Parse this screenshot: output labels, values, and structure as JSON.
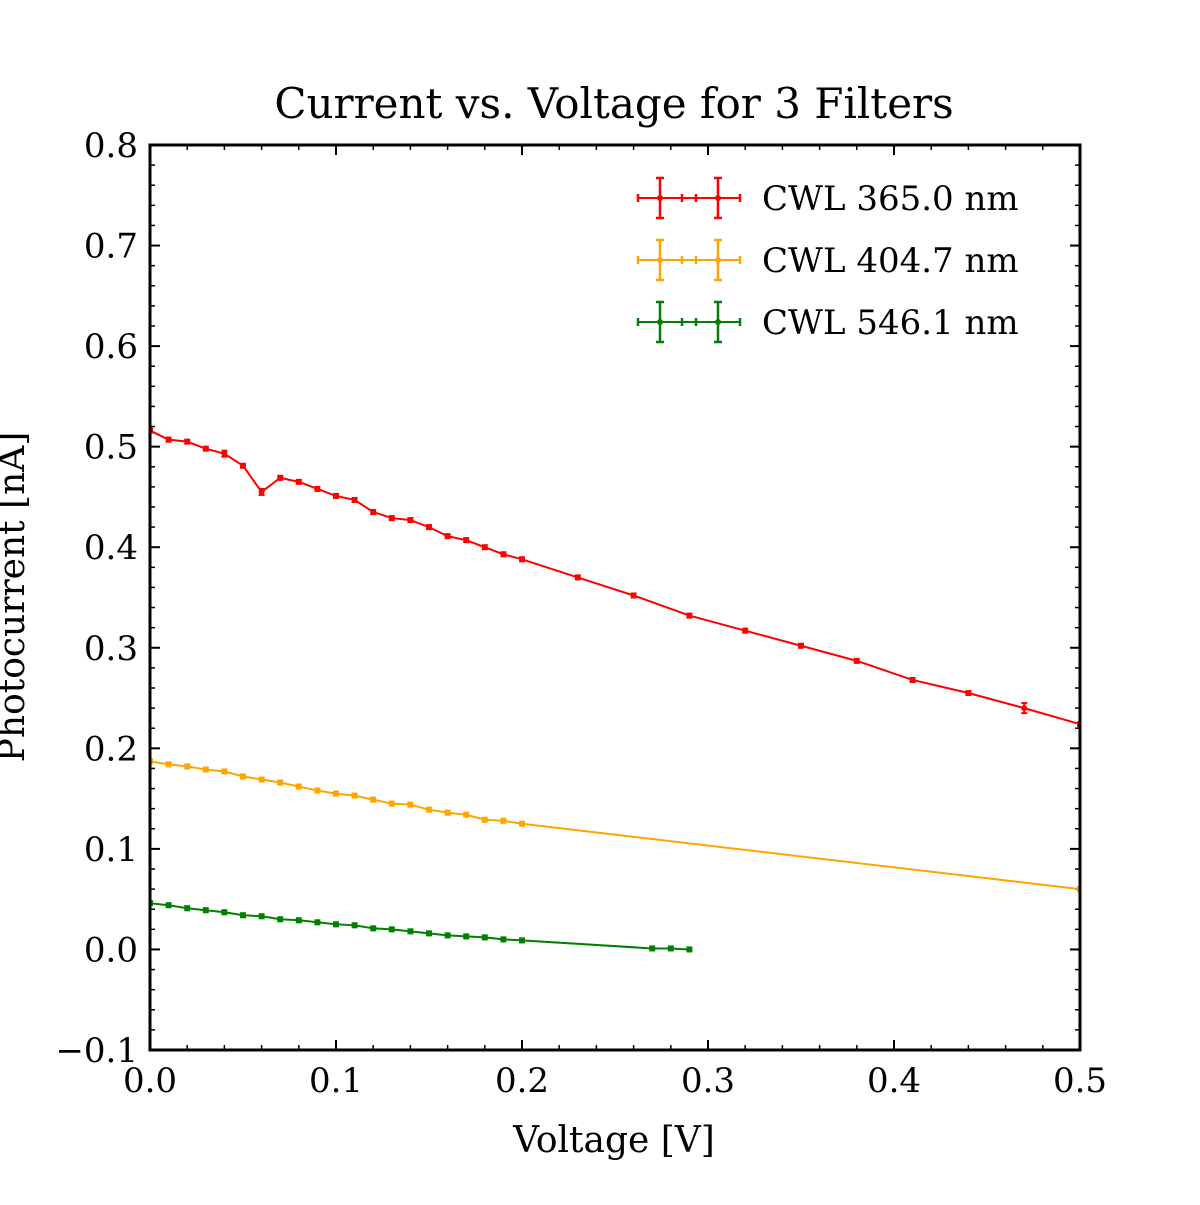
{
  "chart_data": {
    "type": "line",
    "title": "Current vs. Voltage for 3 Filters",
    "xlabel": "Voltage [V]",
    "ylabel": "Photocurrent [nA]",
    "xlim": [
      0.0,
      0.5
    ],
    "ylim": [
      -0.1,
      0.8
    ],
    "xticks": [
      0.0,
      0.1,
      0.2,
      0.3,
      0.4,
      0.5
    ],
    "xtick_labels": [
      "0.0",
      "0.1",
      "0.2",
      "0.3",
      "0.4",
      "0.5"
    ],
    "yticks": [
      -0.1,
      0.0,
      0.1,
      0.2,
      0.3,
      0.4,
      0.5,
      0.6,
      0.7,
      0.8
    ],
    "ytick_labels": [
      "−0.1",
      "0.0",
      "0.1",
      "0.2",
      "0.3",
      "0.4",
      "0.5",
      "0.6",
      "0.7",
      "0.8"
    ],
    "grid": false,
    "legend_position": "top-right",
    "series": [
      {
        "name": "CWL 365.0 nm",
        "color": "#ff0000",
        "x": [
          0.0,
          0.01,
          0.02,
          0.03,
          0.04,
          0.05,
          0.06,
          0.07,
          0.08,
          0.09,
          0.1,
          0.11,
          0.12,
          0.13,
          0.14,
          0.15,
          0.16,
          0.17,
          0.18,
          0.19,
          0.2,
          0.23,
          0.26,
          0.29,
          0.32,
          0.35,
          0.38,
          0.41,
          0.44,
          0.47,
          0.5
        ],
        "y": [
          0.516,
          0.507,
          0.505,
          0.498,
          0.493,
          0.481,
          0.455,
          0.469,
          0.465,
          0.458,
          0.451,
          0.447,
          0.435,
          0.429,
          0.427,
          0.42,
          0.411,
          0.407,
          0.4,
          0.393,
          0.388,
          0.37,
          0.352,
          0.332,
          0.317,
          0.302,
          0.287,
          0.268,
          0.255,
          0.24,
          0.224
        ],
        "yerr": [
          0.002,
          0.002,
          0.002,
          0.002,
          0.003,
          0.002,
          0.003,
          0.002,
          0.002,
          0.002,
          0.002,
          0.002,
          0.002,
          0.002,
          0.002,
          0.002,
          0.002,
          0.002,
          0.002,
          0.002,
          0.002,
          0.002,
          0.002,
          0.002,
          0.002,
          0.002,
          0.002,
          0.002,
          0.002,
          0.005,
          0.002
        ]
      },
      {
        "name": "CWL 404.7 nm",
        "color": "#ffa500",
        "x": [
          0.0,
          0.01,
          0.02,
          0.03,
          0.04,
          0.05,
          0.06,
          0.07,
          0.08,
          0.09,
          0.1,
          0.11,
          0.12,
          0.13,
          0.14,
          0.15,
          0.16,
          0.17,
          0.18,
          0.19,
          0.2,
          0.5
        ],
        "y": [
          0.187,
          0.184,
          0.182,
          0.179,
          0.177,
          0.172,
          0.169,
          0.166,
          0.162,
          0.158,
          0.155,
          0.153,
          0.149,
          0.145,
          0.144,
          0.139,
          0.136,
          0.134,
          0.129,
          0.128,
          0.125,
          0.06
        ],
        "yerr": [
          0.002,
          0.002,
          0.002,
          0.002,
          0.002,
          0.002,
          0.002,
          0.002,
          0.002,
          0.002,
          0.002,
          0.002,
          0.002,
          0.002,
          0.002,
          0.002,
          0.002,
          0.002,
          0.002,
          0.002,
          0.002,
          0.002
        ]
      },
      {
        "name": "CWL 546.1 nm",
        "color": "#008000",
        "x": [
          0.0,
          0.01,
          0.02,
          0.03,
          0.04,
          0.05,
          0.06,
          0.07,
          0.08,
          0.09,
          0.1,
          0.11,
          0.12,
          0.13,
          0.14,
          0.15,
          0.16,
          0.17,
          0.18,
          0.19,
          0.2,
          0.27,
          0.28,
          0.29
        ],
        "y": [
          0.046,
          0.044,
          0.041,
          0.039,
          0.037,
          0.034,
          0.033,
          0.03,
          0.029,
          0.027,
          0.025,
          0.024,
          0.021,
          0.02,
          0.018,
          0.016,
          0.014,
          0.013,
          0.012,
          0.01,
          0.009,
          0.001,
          0.001,
          0.0
        ],
        "yerr": [
          0.002,
          0.002,
          0.002,
          0.002,
          0.002,
          0.002,
          0.002,
          0.002,
          0.002,
          0.002,
          0.002,
          0.002,
          0.002,
          0.002,
          0.002,
          0.002,
          0.002,
          0.002,
          0.002,
          0.002,
          0.002,
          0.002,
          0.002,
          0.002
        ]
      }
    ]
  }
}
